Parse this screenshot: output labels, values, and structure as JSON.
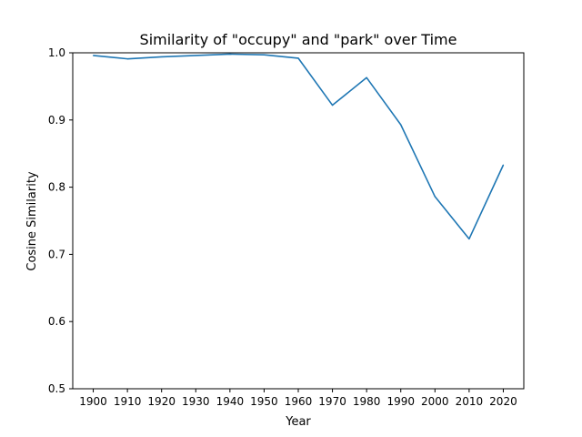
{
  "chart_data": {
    "type": "line",
    "title": "Similarity of \"occupy\" and \"park\" over Time",
    "xlabel": "Year",
    "ylabel": "Cosine Similarity",
    "x": [
      1900,
      1910,
      1920,
      1930,
      1940,
      1950,
      1960,
      1970,
      1980,
      1990,
      2000,
      2010,
      2020
    ],
    "series": [
      {
        "values": [
          0.996,
          0.991,
          0.994,
          0.996,
          0.998,
          0.997,
          0.992,
          0.922,
          0.963,
          0.893,
          0.786,
          0.723,
          0.833
        ],
        "color": "#1f77b4"
      }
    ],
    "xticks": [
      "1900",
      "1910",
      "1920",
      "1930",
      "1940",
      "1950",
      "1960",
      "1970",
      "1980",
      "1990",
      "2000",
      "2010",
      "2020"
    ],
    "yticks": [
      "0.5",
      "0.6",
      "0.7",
      "0.8",
      "0.9",
      "1.0"
    ],
    "ylim": [
      0.5,
      1.0
    ],
    "grid": false,
    "legend": "none"
  }
}
